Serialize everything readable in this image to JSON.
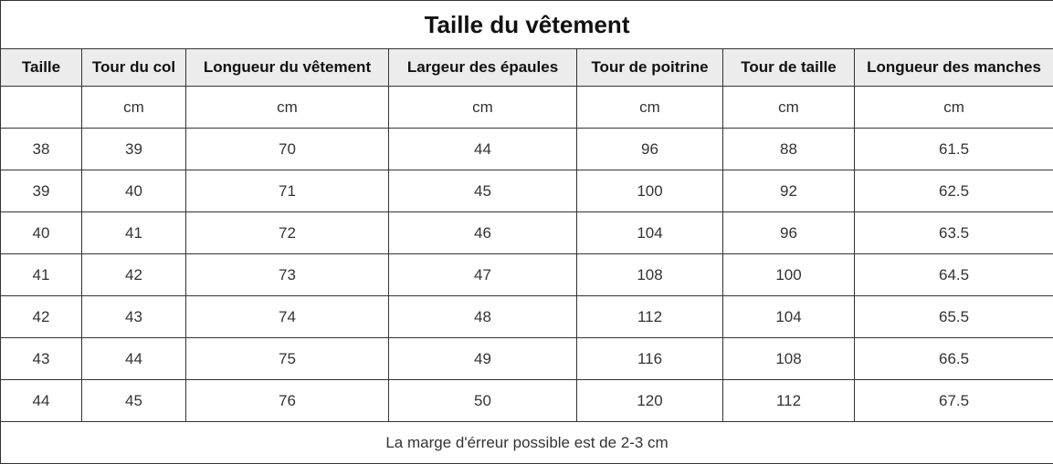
{
  "title": "Taille du vêtement",
  "columns": [
    "Taille",
    "Tour du col",
    "Longueur du vêtement",
    "Largeur des épaules",
    "Tour de poitrine",
    "Tour de taille",
    "Longueur des manches"
  ],
  "units": [
    "",
    "cm",
    "cm",
    "cm",
    "cm",
    "cm",
    "cm"
  ],
  "rows": [
    [
      "38",
      "39",
      "70",
      "44",
      "96",
      "88",
      "61.5"
    ],
    [
      "39",
      "40",
      "71",
      "45",
      "100",
      "92",
      "62.5"
    ],
    [
      "40",
      "41",
      "72",
      "46",
      "104",
      "96",
      "63.5"
    ],
    [
      "41",
      "42",
      "73",
      "47",
      "108",
      "100",
      "64.5"
    ],
    [
      "42",
      "43",
      "74",
      "48",
      "112",
      "104",
      "65.5"
    ],
    [
      "43",
      "44",
      "75",
      "49",
      "116",
      "108",
      "66.5"
    ],
    [
      "44",
      "45",
      "76",
      "50",
      "120",
      "112",
      "67.5"
    ]
  ],
  "footer": "La marge d'érreur possible est de 2-3 cm"
}
